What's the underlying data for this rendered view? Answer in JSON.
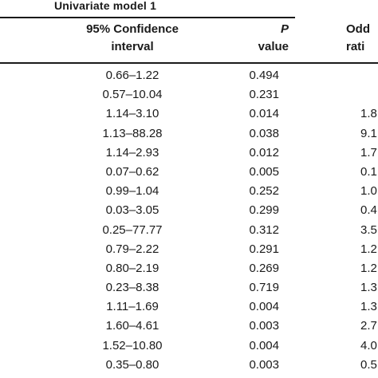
{
  "group_title": "Univariate model 1",
  "headers": {
    "ci_line1": "95% Confidence",
    "ci_line2": "interval",
    "p_line1": "P",
    "p_line2": "value",
    "or_line1": "Odd",
    "or_line2": "rati"
  },
  "rows": [
    {
      "ci": "0.66–1.22",
      "p": "0.494",
      "or": ""
    },
    {
      "ci": "0.57–10.04",
      "p": "0.231",
      "or": ""
    },
    {
      "ci": "1.14–3.10",
      "p": "0.014",
      "or": "1.8"
    },
    {
      "ci": "1.13–88.28",
      "p": "0.038",
      "or": "9.1"
    },
    {
      "ci": "1.14–2.93",
      "p": "0.012",
      "or": "1.7"
    },
    {
      "ci": "0.07–0.62",
      "p": "0.005",
      "or": "0.1"
    },
    {
      "ci": "0.99–1.04",
      "p": "0.252",
      "or": "1.0"
    },
    {
      "ci": "0.03–3.05",
      "p": "0.299",
      "or": "0.4"
    },
    {
      "ci": "0.25–77.77",
      "p": "0.312",
      "or": "3.5"
    },
    {
      "ci": "0.79–2.22",
      "p": "0.291",
      "or": "1.2"
    },
    {
      "ci": "0.80–2.19",
      "p": "0.269",
      "or": "1.2"
    },
    {
      "ci": "0.23–8.38",
      "p": "0.719",
      "or": "1.3"
    },
    {
      "ci": "1.11–1.69",
      "p": "0.004",
      "or": "1.3"
    },
    {
      "ci": "1.60–4.61",
      "p": "0.003",
      "or": "2.7"
    },
    {
      "ci": "1.52–10.80",
      "p": "0.004",
      "or": "4.0"
    },
    {
      "ci": "0.35–0.80",
      "p": "0.003",
      "or": "0.5"
    }
  ]
}
